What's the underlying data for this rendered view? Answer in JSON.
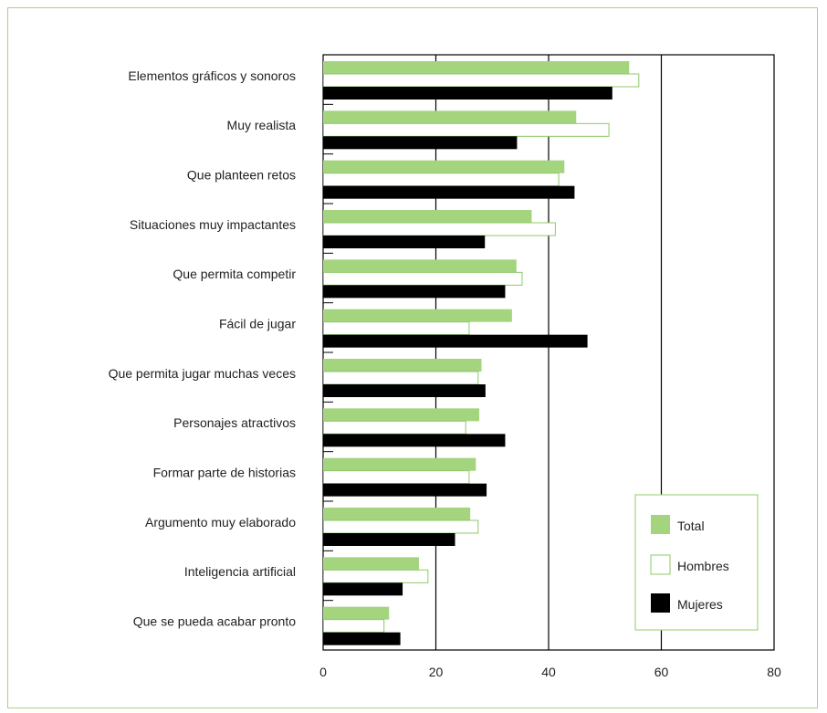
{
  "colors": {
    "frame_border": "#a5d47f",
    "total": "#a5d47f",
    "hombres_border": "#8dc96a",
    "mujeres": "#000000",
    "axis": "#000000"
  },
  "chart_data": {
    "type": "bar",
    "orientation": "horizontal",
    "categories": [
      "Elementos gráficos y sonoros",
      "Muy realista",
      "Que planteen retos",
      "Situaciones muy impactantes",
      "Que permita competir",
      "Fácil de jugar",
      "Que permita jugar muchas veces",
      "Personajes atractivos",
      "Formar parte de historias",
      "Argumento muy elaborado",
      "Inteligencia artificial",
      "Que se pueda acabar pronto"
    ],
    "series": [
      {
        "name": "Total",
        "values": [
          54.3,
          44.9,
          42.8,
          37.0,
          34.3,
          33.5,
          28.1,
          27.7,
          27.1,
          26.1,
          17.0,
          11.7
        ]
      },
      {
        "name": "Hombres",
        "values": [
          56.0,
          50.7,
          41.8,
          41.2,
          35.3,
          25.9,
          27.5,
          25.3,
          25.9,
          27.5,
          18.6,
          10.8
        ]
      },
      {
        "name": "Mujeres",
        "values": [
          51.3,
          34.4,
          44.6,
          28.7,
          32.3,
          46.9,
          28.8,
          32.3,
          29.0,
          23.4,
          14.1,
          13.7
        ]
      }
    ],
    "xlim": [
      0,
      80
    ],
    "xticks": [
      "0",
      "20",
      "40",
      "60",
      "80"
    ],
    "gridlines_x": [
      20,
      40,
      60
    ],
    "legend": {
      "position": "bottom-right",
      "entries": [
        "Total",
        "Hombres",
        "Mujeres"
      ]
    },
    "title": "",
    "xlabel": "",
    "ylabel": ""
  }
}
